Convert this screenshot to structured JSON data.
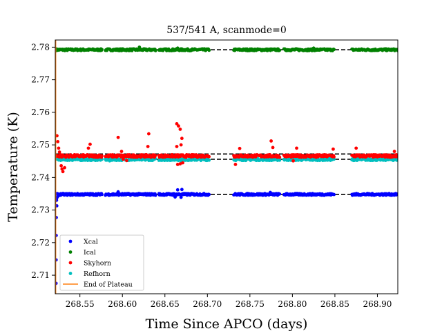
{
  "chart_data": {
    "type": "scatter",
    "title": "537/541 A, scanmode=0",
    "xlabel": "Time Since APCO (days)",
    "ylabel": "Temperature (K)",
    "xlim": [
      268.521,
      268.924
    ],
    "ylim": [
      2.7043,
      2.7822
    ],
    "x_ticks": [
      268.55,
      268.6,
      268.65,
      268.7,
      268.75,
      268.8,
      268.85,
      268.9
    ],
    "x_tick_labels": [
      "268.55",
      "268.60",
      "268.65",
      "268.70",
      "268.75",
      "268.80",
      "268.85",
      "268.90"
    ],
    "y_ticks": [
      2.71,
      2.72,
      2.73,
      2.74,
      2.75,
      2.76,
      2.77,
      2.78
    ],
    "y_tick_labels": [
      "2.71",
      "2.72",
      "2.73",
      "2.74",
      "2.75",
      "2.76",
      "2.77",
      "2.78"
    ],
    "grid": false,
    "legend_position": "lower-left",
    "segments": [
      [
        268.522,
        268.576
      ],
      [
        268.58,
        268.639
      ],
      [
        268.643,
        268.702
      ],
      [
        268.731,
        268.785
      ],
      [
        268.79,
        268.849
      ],
      [
        268.87,
        268.924
      ]
    ],
    "reference_lines": [
      {
        "y": 2.7792,
        "color": "#000000",
        "style": "dashed"
      },
      {
        "y": 2.7472,
        "color": "#000000",
        "style": "dashed"
      },
      {
        "y": 2.7456,
        "color": "#000000",
        "style": "dashed"
      },
      {
        "y": 2.7348,
        "color": "#000000",
        "style": "dashed"
      }
    ],
    "end_of_plateau_x": 268.5215,
    "series": [
      {
        "name": "Xcal",
        "color": "#0000ff",
        "level": 2.7348,
        "spread": 0.00015,
        "outliers": [
          [
            268.5225,
            2.7335
          ],
          [
            268.5225,
            2.733
          ],
          [
            268.5228,
            2.7313
          ],
          [
            268.5222,
            2.7277
          ],
          [
            268.5221,
            2.7222
          ],
          [
            268.522,
            2.7147
          ],
          [
            268.5219,
            2.7075
          ],
          [
            268.5235,
            2.734
          ],
          [
            268.525,
            2.7344
          ],
          [
            268.665,
            2.7362
          ],
          [
            268.67,
            2.7363
          ],
          [
            268.662,
            2.734
          ],
          [
            268.669,
            2.7339
          ],
          [
            268.595,
            2.7356
          ],
          [
            268.774,
            2.7354
          ]
        ]
      },
      {
        "name": "Ical",
        "color": "#008000",
        "level": 2.7792,
        "spread": 0.00015,
        "outliers": [
          [
            268.62,
            2.78
          ],
          [
            268.825,
            2.7797
          ],
          [
            268.665,
            2.7797
          ]
        ]
      },
      {
        "name": "Skyhorn",
        "color": "#ff0000",
        "level": 2.7466,
        "spread": 0.0002,
        "outliers": [
          [
            268.523,
            2.7528
          ],
          [
            268.524,
            2.751
          ],
          [
            268.525,
            2.749
          ],
          [
            268.526,
            2.7478
          ],
          [
            268.527,
            2.747
          ],
          [
            268.528,
            2.7436
          ],
          [
            268.53,
            2.7418
          ],
          [
            268.532,
            2.743
          ],
          [
            268.529,
            2.7426
          ],
          [
            268.562,
            2.7502
          ],
          [
            268.56,
            2.749
          ],
          [
            268.595,
            2.7523
          ],
          [
            268.599,
            2.748
          ],
          [
            268.601,
            2.7456
          ],
          [
            268.605,
            2.7452
          ],
          [
            268.631,
            2.7534
          ],
          [
            268.63,
            2.7495
          ],
          [
            268.664,
            2.7565
          ],
          [
            268.666,
            2.7558
          ],
          [
            268.668,
            2.7548
          ],
          [
            268.67,
            2.752
          ],
          [
            268.669,
            2.75
          ],
          [
            268.664,
            2.7495
          ],
          [
            268.665,
            2.744
          ],
          [
            268.668,
            2.7442
          ],
          [
            268.671,
            2.7445
          ],
          [
            268.733,
            2.744
          ],
          [
            268.738,
            2.7489
          ],
          [
            268.775,
            2.7512
          ],
          [
            268.777,
            2.7492
          ],
          [
            268.805,
            2.749
          ],
          [
            268.848,
            2.7487
          ],
          [
            268.875,
            2.749
          ],
          [
            268.92,
            2.748
          ],
          [
            268.801,
            2.7451
          ],
          [
            268.828,
            2.7462
          ]
        ]
      },
      {
        "name": "Refhorn",
        "color": "#00bfbf",
        "level": 2.7455,
        "spread": 0.00015,
        "outliers": [
          [
            268.664,
            2.746
          ],
          [
            268.67,
            2.7448
          ],
          [
            268.585,
            2.7451
          ]
        ]
      }
    ],
    "plateau_line": {
      "name": "End of Plateau",
      "color": "#ff7f0e"
    }
  }
}
